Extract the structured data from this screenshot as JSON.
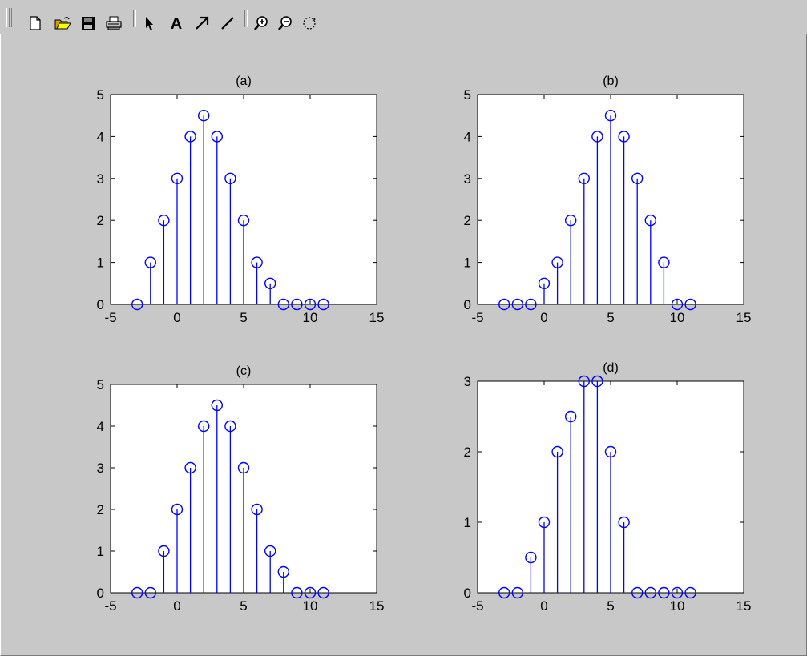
{
  "toolbar": {
    "buttons": [
      {
        "name": "new-figure-button",
        "icon": "new-document-icon"
      },
      {
        "name": "open-file-button",
        "icon": "open-folder-icon"
      },
      {
        "name": "save-button",
        "icon": "save-disk-icon"
      },
      {
        "name": "print-button",
        "icon": "printer-icon"
      },
      {
        "name": "edit-plot-button",
        "icon": "pointer-arrow-icon"
      },
      {
        "name": "insert-text-button",
        "icon": "text-a-icon"
      },
      {
        "name": "insert-arrow-button",
        "icon": "arrow-icon"
      },
      {
        "name": "insert-line-button",
        "icon": "line-icon"
      },
      {
        "name": "zoom-in-button",
        "icon": "zoom-in-icon"
      },
      {
        "name": "zoom-out-button",
        "icon": "zoom-out-icon"
      },
      {
        "name": "rotate-3d-button",
        "icon": "rotate-icon"
      }
    ],
    "text_tool_label": "A"
  },
  "colors": {
    "background": "#c8c8c8",
    "axes_bg": "#ffffff",
    "stem": "#0000ff",
    "axis": "#000000"
  },
  "chart_data": [
    {
      "type": "stem",
      "title": "(a)",
      "xlim": [
        -5,
        15
      ],
      "ylim": [
        0,
        5
      ],
      "xticks": [
        "-5",
        "0",
        "5",
        "10",
        "15"
      ],
      "yticks": [
        "0",
        "1",
        "2",
        "3",
        "4",
        "5"
      ],
      "x": [
        -3,
        -2,
        -1,
        0,
        1,
        2,
        3,
        4,
        5,
        6,
        7,
        8,
        9,
        10,
        11
      ],
      "y": [
        0,
        1,
        2,
        3,
        4,
        4.5,
        4,
        3,
        2,
        1,
        0.5,
        0,
        0,
        0,
        0
      ]
    },
    {
      "type": "stem",
      "title": "(b)",
      "xlim": [
        -5,
        15
      ],
      "ylim": [
        0,
        5
      ],
      "xticks": [
        "-5",
        "0",
        "5",
        "10",
        "15"
      ],
      "yticks": [
        "0",
        "1",
        "2",
        "3",
        "4",
        "5"
      ],
      "x": [
        -3,
        -2,
        -1,
        0,
        1,
        2,
        3,
        4,
        5,
        6,
        7,
        8,
        9,
        10,
        11
      ],
      "y": [
        0,
        0,
        0,
        0.5,
        1,
        2,
        3,
        4,
        4.5,
        4,
        3,
        2,
        1,
        0,
        0
      ]
    },
    {
      "type": "stem",
      "title": "(c)",
      "xlim": [
        -5,
        15
      ],
      "ylim": [
        0,
        5
      ],
      "xticks": [
        "-5",
        "0",
        "5",
        "10",
        "15"
      ],
      "yticks": [
        "0",
        "1",
        "2",
        "3",
        "4",
        "5"
      ],
      "x": [
        -3,
        -2,
        -1,
        0,
        1,
        2,
        3,
        4,
        5,
        6,
        7,
        8,
        9,
        10,
        11
      ],
      "y": [
        0,
        0,
        1,
        2,
        3,
        4,
        4.5,
        4,
        3,
        2,
        1,
        0.5,
        0,
        0,
        0
      ]
    },
    {
      "type": "stem",
      "title": "(d)",
      "xlim": [
        -5,
        15
      ],
      "ylim": [
        0,
        3
      ],
      "xticks": [
        "-5",
        "0",
        "5",
        "10",
        "15"
      ],
      "yticks": [
        "0",
        "1",
        "2",
        "3"
      ],
      "x": [
        -3,
        -2,
        -1,
        0,
        1,
        2,
        3,
        4,
        5,
        6,
        7,
        8,
        9,
        10,
        11
      ],
      "y": [
        0,
        0,
        0.5,
        1,
        2,
        2.5,
        3,
        3,
        2,
        1,
        0,
        0,
        0,
        0,
        0
      ]
    }
  ]
}
